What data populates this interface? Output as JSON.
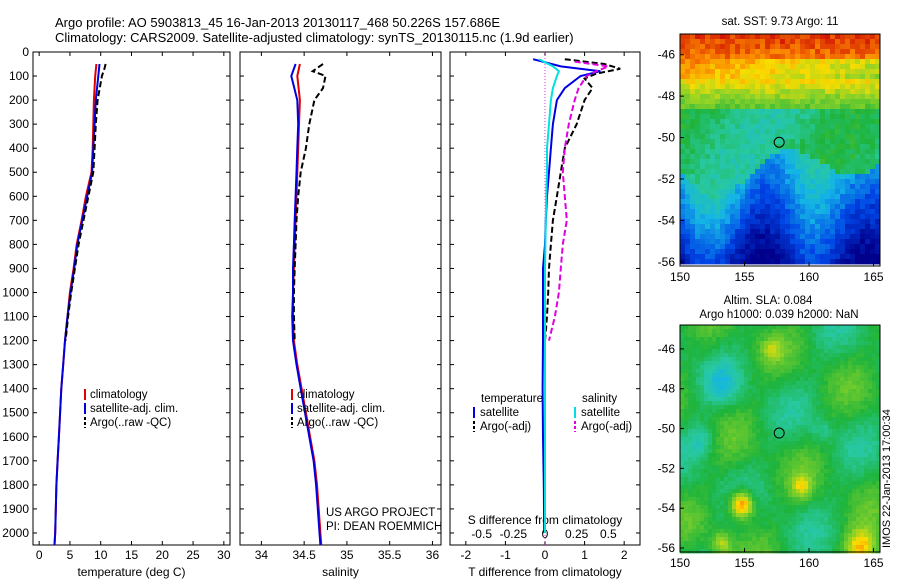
{
  "header": {
    "line1": "Argo profile: AO 5903813_45 16-Jan-2013 20130117_468 50.226S 157.686E",
    "line2": "Climatology: CARS2009. Satellite-adjusted climatology: synTS_20130115.nc (1.9d earlier)"
  },
  "credits": {
    "project": "US ARGO PROJECT",
    "pi": "PI: DEAN ROEMMICH",
    "stamp": "IMOS 22-Jan-2013 17:00:34"
  },
  "colors": {
    "climatology": "#e00000",
    "satellite": "#0000e0",
    "argo": "#000000",
    "s_satellite": "#00e0e0",
    "s_argo": "#e000e0"
  },
  "chart_data": [
    {
      "type": "line",
      "id": "temperature",
      "xlabel": "temperature (deg C)",
      "ylabel": "",
      "xlim": [
        -1,
        31
      ],
      "ylim": [
        2050,
        0
      ],
      "xticks": [
        "0",
        "5",
        "10",
        "15",
        "20",
        "25",
        "30"
      ],
      "xtick_values": [
        0,
        5,
        10,
        15,
        20,
        25,
        30
      ],
      "yticks": [
        "0",
        "100",
        "200",
        "300",
        "400",
        "500",
        "600",
        "700",
        "800",
        "900",
        "1000",
        "1100",
        "1200",
        "1300",
        "1400",
        "1500",
        "1600",
        "1700",
        "1800",
        "1900",
        "2000"
      ],
      "legend": [
        "climatology",
        "satellite-adj. clim.",
        "Argo(..raw -QC)"
      ],
      "series": [
        {
          "name": "climatology",
          "depth": [
            50,
            100,
            200,
            300,
            400,
            500,
            600,
            700,
            800,
            900,
            1000,
            1100,
            1200,
            1300,
            1400,
            1500,
            1600,
            1700,
            1800,
            1900,
            2000,
            2050
          ],
          "values": [
            9.3,
            9.1,
            8.9,
            8.8,
            8.7,
            8.5,
            7.6,
            6.9,
            6.1,
            5.6,
            5.0,
            4.6,
            4.2,
            3.9,
            3.6,
            3.4,
            3.2,
            3.0,
            2.8,
            2.7,
            2.6,
            2.5
          ]
        },
        {
          "name": "satellite-adj. clim.",
          "depth": [
            50,
            100,
            200,
            300,
            400,
            500,
            600,
            700,
            800,
            900,
            1000,
            1100,
            1200,
            1300,
            1400,
            1500,
            1600,
            1700,
            1800,
            1900,
            2000,
            2050
          ],
          "values": [
            9.8,
            9.6,
            9.2,
            9.0,
            8.8,
            8.6,
            7.8,
            7.0,
            6.2,
            5.7,
            5.1,
            4.6,
            4.2,
            3.9,
            3.6,
            3.4,
            3.2,
            3.0,
            2.8,
            2.7,
            2.6,
            2.5
          ]
        },
        {
          "name": "Argo(..raw -QC)",
          "depth": [
            50,
            70,
            100,
            200,
            300,
            400,
            500,
            600,
            700,
            800,
            900,
            1000,
            1100,
            1200
          ],
          "values": [
            10.8,
            10.6,
            10.2,
            9.5,
            9.2,
            9.0,
            8.8,
            8.0,
            7.2,
            6.4,
            5.8,
            5.2,
            4.7,
            4.3
          ]
        }
      ]
    },
    {
      "type": "line",
      "id": "salinity",
      "xlabel": "salinity",
      "ylabel": "",
      "xlim": [
        33.75,
        36.1
      ],
      "ylim": [
        2050,
        0
      ],
      "xticks": [
        "34",
        "34.5",
        "35",
        "35.5",
        "36"
      ],
      "xtick_values": [
        34,
        34.5,
        35,
        35.5,
        36
      ],
      "legend": [
        "climatology",
        "satellite-adj. clim.",
        "Argo(..raw -QC)"
      ],
      "series": [
        {
          "name": "climatology",
          "depth": [
            50,
            100,
            200,
            300,
            400,
            500,
            600,
            700,
            800,
            900,
            1000,
            1100,
            1200,
            1300,
            1400,
            1500,
            1600,
            1700,
            1800,
            1900,
            2000,
            2050
          ],
          "values": [
            34.45,
            34.42,
            34.45,
            34.44,
            34.43,
            34.42,
            34.41,
            34.4,
            34.39,
            34.38,
            34.37,
            34.37,
            34.38,
            34.42,
            34.47,
            34.52,
            34.57,
            34.62,
            34.65,
            34.67,
            34.69,
            34.7
          ]
        },
        {
          "name": "satellite-adj. clim.",
          "depth": [
            50,
            100,
            200,
            300,
            400,
            500,
            600,
            700,
            800,
            900,
            1000,
            1100,
            1200,
            1300,
            1400,
            1500,
            1600,
            1700,
            1800,
            1900,
            2000,
            2050
          ],
          "values": [
            34.4,
            34.35,
            34.42,
            34.43,
            34.42,
            34.41,
            34.4,
            34.39,
            34.38,
            34.37,
            34.37,
            34.36,
            34.37,
            34.41,
            34.46,
            34.51,
            34.56,
            34.61,
            34.64,
            34.66,
            34.68,
            34.69
          ]
        },
        {
          "name": "Argo(..raw -QC)",
          "depth": [
            50,
            80,
            100,
            150,
            200,
            300,
            400,
            500,
            600,
            700,
            800,
            900,
            1000,
            1100,
            1200
          ],
          "values": [
            34.72,
            34.6,
            34.75,
            34.72,
            34.62,
            34.56,
            34.52,
            34.46,
            34.43,
            34.41,
            34.4,
            34.39,
            34.38,
            34.38,
            34.39
          ]
        }
      ]
    },
    {
      "type": "line",
      "id": "difference",
      "xlabel": "T difference from climatology",
      "xlabel2": "S difference from climatology",
      "xlim": [
        -2.4,
        2.4
      ],
      "ylim": [
        2050,
        0
      ],
      "xticks": [
        "-2",
        "-1",
        "0",
        "1",
        "2"
      ],
      "xtick_values": [
        -2,
        -1,
        0,
        1,
        2
      ],
      "sticks": [
        "-0.5",
        "-0.25",
        "0",
        "0.25",
        "0.5"
      ],
      "stick_values": [
        -1.6,
        -0.8,
        0,
        0.8,
        1.6
      ],
      "legend_titles": [
        "temperature",
        "salinity"
      ],
      "legend": [
        "satellite",
        "Argo(-adj)",
        "satellite",
        "Argo(-adj)"
      ],
      "series": [
        {
          "name": "satellite",
          "quantity": "temperature",
          "depth": [
            30,
            60,
            80,
            100,
            150,
            200,
            300,
            400,
            500,
            600,
            700,
            800,
            900,
            1000,
            1100,
            1200,
            1400,
            1600,
            1800,
            2000
          ],
          "values": [
            -0.3,
            0.4,
            1.4,
            0.9,
            0.5,
            0.3,
            0.2,
            0.15,
            0.1,
            0.05,
            0.02,
            0.0,
            -0.05,
            -0.05,
            -0.05,
            -0.05,
            -0.06,
            -0.05,
            -0.03,
            -0.02
          ]
        },
        {
          "name": "Argo(-adj)",
          "quantity": "temperature",
          "depth": [
            30,
            50,
            70,
            90,
            110,
            150,
            200,
            300,
            400,
            500,
            600,
            700,
            800,
            900,
            1000,
            1100,
            1200
          ],
          "values": [
            0.5,
            1.5,
            1.9,
            1.3,
            1.0,
            1.2,
            1.0,
            0.8,
            0.5,
            0.4,
            0.3,
            0.2,
            0.15,
            0.1,
            0.08,
            0.05,
            0.0
          ]
        },
        {
          "name": "satellite",
          "quantity": "salinity",
          "depth": [
            30,
            60,
            80,
            100,
            150,
            200,
            300,
            400,
            500,
            600,
            700,
            800,
            900,
            1000,
            1200,
            1400,
            1600,
            1800,
            2000
          ],
          "values": [
            -0.15,
            0.2,
            0.35,
            0.3,
            0.2,
            0.15,
            0.1,
            0.05,
            0.05,
            0.03,
            0.02,
            0.01,
            0.0,
            0.0,
            0.0,
            0.0,
            0.0,
            0.0,
            0.0
          ]
        },
        {
          "name": "Argo(-adj)",
          "quantity": "salinity",
          "depth": [
            40,
            60,
            80,
            100,
            150,
            200,
            300,
            400,
            500,
            600,
            700,
            800,
            900,
            1000,
            1100,
            1200
          ],
          "values": [
            0.75,
            1.6,
            1.3,
            1.05,
            0.85,
            0.75,
            0.6,
            0.5,
            0.45,
            0.5,
            0.55,
            0.45,
            0.4,
            0.35,
            0.25,
            0.1
          ]
        }
      ]
    },
    {
      "type": "heatmap",
      "id": "sst_map",
      "title": "sat. SST: 9.73 Argo: 11",
      "xlim": [
        150,
        165.5
      ],
      "ylim": [
        -56.2,
        -45
      ],
      "xticks": [
        "150",
        "155",
        "160",
        "165"
      ],
      "xtick_values": [
        150,
        155,
        160,
        165
      ],
      "yticks": [
        "-46",
        "-48",
        "-50",
        "-52",
        "-54",
        "-56"
      ],
      "ytick_values": [
        -46,
        -48,
        -50,
        -52,
        -54,
        -56
      ],
      "marker": {
        "lon": 157.686,
        "lat": -50.226
      }
    },
    {
      "type": "heatmap",
      "id": "sla_map",
      "title": "Altim. SLA: 0.084",
      "subtitle": "Argo h1000: 0.039 h2000: NaN",
      "xlim": [
        150,
        165.5
      ],
      "ylim": [
        -56.2,
        -44.8
      ],
      "xticks": [
        "150",
        "155",
        "160",
        "165"
      ],
      "xtick_values": [
        150,
        155,
        160,
        165
      ],
      "yticks": [
        "-46",
        "-48",
        "-50",
        "-52",
        "-54",
        "-56"
      ],
      "ytick_values": [
        -46,
        -48,
        -50,
        -52,
        -54,
        -56
      ],
      "marker": {
        "lon": 157.686,
        "lat": -50.226
      }
    }
  ]
}
